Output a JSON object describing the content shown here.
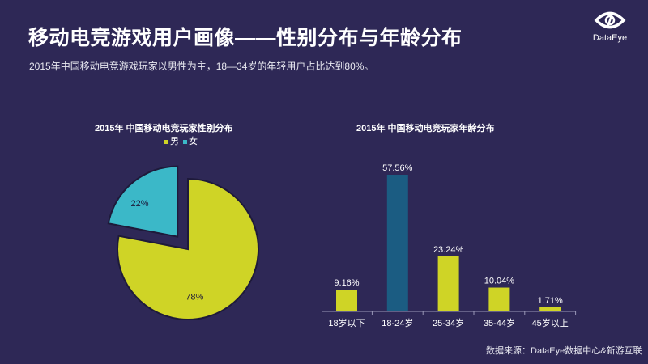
{
  "header": {
    "title": "移动电竞游戏用户画像——性别分布与年龄分布",
    "subtitle": "2015年中国移动电竞游戏玩家以男性为主，18—34岁的年轻用户占比达到80%。",
    "logo_text": "DataEye"
  },
  "colors": {
    "background": "#2e2856",
    "male": "#cfd426",
    "female": "#3bb8c8",
    "highlight_bar": "#1b5c82",
    "bar": "#cfd426"
  },
  "chart_data": [
    {
      "type": "pie",
      "title": "2015年 中国移动电竞玩家性别分布",
      "legend": [
        "男",
        "女"
      ],
      "legend_placement": "top",
      "slices": [
        {
          "name": "男",
          "value": 78,
          "label": "78%"
        },
        {
          "name": "女",
          "value": 22,
          "label": "22%",
          "exploded": true
        }
      ]
    },
    {
      "type": "bar",
      "title": "2015年 中国移动电竞玩家年龄分布",
      "categories": [
        "18岁以下",
        "18-24岁",
        "25-34岁",
        "35-44岁",
        "45岁以上"
      ],
      "values": [
        9.16,
        57.56,
        23.24,
        10.04,
        1.71
      ],
      "labels": [
        "9.16%",
        "57.56%",
        "23.24%",
        "10.04%",
        "1.71%"
      ],
      "highlight_index": 1,
      "grid": false,
      "y_axis_visible": false
    }
  ],
  "footer": {
    "source": "数据来源：DataEye数据中心&新游互联"
  }
}
